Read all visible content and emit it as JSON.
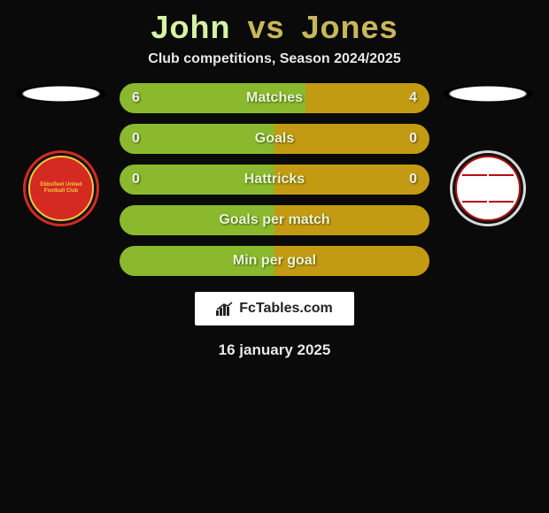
{
  "title": {
    "player1": "John",
    "vs": "vs",
    "player2": "Jones",
    "player1_color": "#d5f3a4",
    "vs_color": "#c7b75a",
    "player2_color": "#c7b75a"
  },
  "subtitle": "Club competitions, Season 2024/2025",
  "colors": {
    "left_fill": "#8ab92d",
    "right_fill": "#c39b12",
    "background": "#0a0a0a"
  },
  "stats": [
    {
      "label": "Matches",
      "left_val": "6",
      "right_val": "4",
      "left_pct": 60,
      "right_pct": 40
    },
    {
      "label": "Goals",
      "left_val": "0",
      "right_val": "0",
      "left_pct": 50,
      "right_pct": 50
    },
    {
      "label": "Hattricks",
      "left_val": "0",
      "right_val": "0",
      "left_pct": 50,
      "right_pct": 50
    },
    {
      "label": "Goals per match",
      "left_val": "",
      "right_val": "",
      "left_pct": 50,
      "right_pct": 50
    },
    {
      "label": "Min per goal",
      "left_val": "",
      "right_val": "",
      "left_pct": 50,
      "right_pct": 50
    }
  ],
  "clubs": {
    "left": {
      "name": "Ebbsfleet United Football Club",
      "ring": "#d42a22",
      "inner": "#d42a22",
      "accent": "#f3c93a"
    },
    "right": {
      "name": "Woking",
      "ring": "#d9d9d9",
      "inner": "#ffffff",
      "accent": "#b30f0f"
    }
  },
  "branding": "FcTables.com",
  "date": "16 january 2025"
}
